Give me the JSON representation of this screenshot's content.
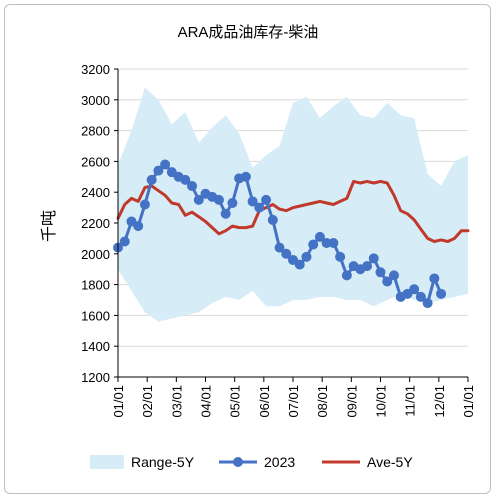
{
  "chart_data": {
    "type": "line",
    "title": "ARA成品油库存-柴油",
    "xlabel": "",
    "ylabel": "千吨",
    "ylim": [
      1200,
      3200
    ],
    "yticks": [
      1200,
      1400,
      1600,
      1800,
      2000,
      2200,
      2400,
      2600,
      2800,
      3000,
      3200
    ],
    "xticks": [
      "01/01",
      "02/01",
      "03/01",
      "04/01",
      "05/01",
      "06/01",
      "07/01",
      "08/01",
      "09/01",
      "10/01",
      "11/01",
      "12/01",
      "01/01"
    ],
    "x_unit": "week",
    "grid": "y-major",
    "legend_position": "bottom",
    "colors": {
      "range": "#d6ecf7",
      "series_2023": "#4472c4",
      "ave": "#c0392b"
    },
    "series": [
      {
        "name": "Range-5Y",
        "kind": "band",
        "x": [
          0,
          2,
          4,
          6,
          8,
          10,
          12,
          14,
          16,
          18,
          20,
          22,
          24,
          26,
          28,
          30,
          32,
          34,
          36,
          38,
          40,
          42,
          44,
          46,
          48,
          50,
          52
        ],
        "upper": [
          2580,
          2800,
          3080,
          3000,
          2840,
          2920,
          2720,
          2820,
          2900,
          2780,
          2560,
          2640,
          2700,
          2980,
          3020,
          2880,
          2960,
          3020,
          2900,
          2880,
          2980,
          2900,
          2880,
          2520,
          2440,
          2600,
          2640
        ],
        "lower": [
          1900,
          1760,
          1620,
          1560,
          1580,
          1600,
          1620,
          1680,
          1720,
          1700,
          1760,
          1660,
          1660,
          1700,
          1700,
          1720,
          1720,
          1700,
          1700,
          1660,
          1700,
          1740,
          1700,
          1680,
          1700,
          1720,
          1740
        ]
      },
      {
        "name": "2023",
        "kind": "line-markers",
        "x": [
          0,
          1,
          2,
          3,
          4,
          5,
          6,
          7,
          8,
          9,
          10,
          11,
          12,
          13,
          14,
          15,
          16,
          17,
          18,
          19,
          20,
          21,
          22,
          23,
          24,
          25,
          26,
          27,
          28,
          29,
          30,
          31,
          32,
          33,
          34,
          35,
          36,
          37,
          38,
          39,
          40,
          41,
          42,
          43,
          44,
          45,
          46,
          47,
          48
        ],
        "values": [
          2040,
          2080,
          2210,
          2180,
          2320,
          2480,
          2540,
          2580,
          2530,
          2500,
          2480,
          2440,
          2350,
          2390,
          2370,
          2350,
          2260,
          2330,
          2490,
          2500,
          2340,
          2300,
          2350,
          2220,
          2040,
          2000,
          1960,
          1930,
          1980,
          2060,
          2110,
          2070,
          2070,
          1980,
          1860,
          1920,
          1900,
          1920,
          1970,
          1880,
          1820,
          1860,
          1720,
          1740,
          1770,
          1720,
          1680,
          1840,
          1740
        ]
      },
      {
        "name": "Ave-5Y",
        "kind": "line",
        "x": [
          0,
          1,
          2,
          3,
          4,
          5,
          6,
          7,
          8,
          9,
          10,
          11,
          12,
          13,
          14,
          15,
          16,
          17,
          18,
          19,
          20,
          21,
          22,
          23,
          24,
          25,
          26,
          27,
          28,
          29,
          30,
          31,
          32,
          33,
          34,
          35,
          36,
          37,
          38,
          39,
          40,
          41,
          42,
          43,
          44,
          45,
          46,
          47,
          48,
          49,
          50,
          51,
          52
        ],
        "values": [
          2230,
          2320,
          2360,
          2340,
          2430,
          2440,
          2410,
          2380,
          2330,
          2320,
          2250,
          2270,
          2240,
          2210,
          2170,
          2130,
          2150,
          2180,
          2170,
          2170,
          2180,
          2280,
          2300,
          2320,
          2290,
          2280,
          2300,
          2310,
          2320,
          2330,
          2340,
          2330,
          2320,
          2340,
          2360,
          2470,
          2460,
          2470,
          2460,
          2470,
          2460,
          2380,
          2280,
          2260,
          2220,
          2160,
          2100,
          2080,
          2090,
          2080,
          2100,
          2150,
          2150
        ]
      }
    ]
  }
}
